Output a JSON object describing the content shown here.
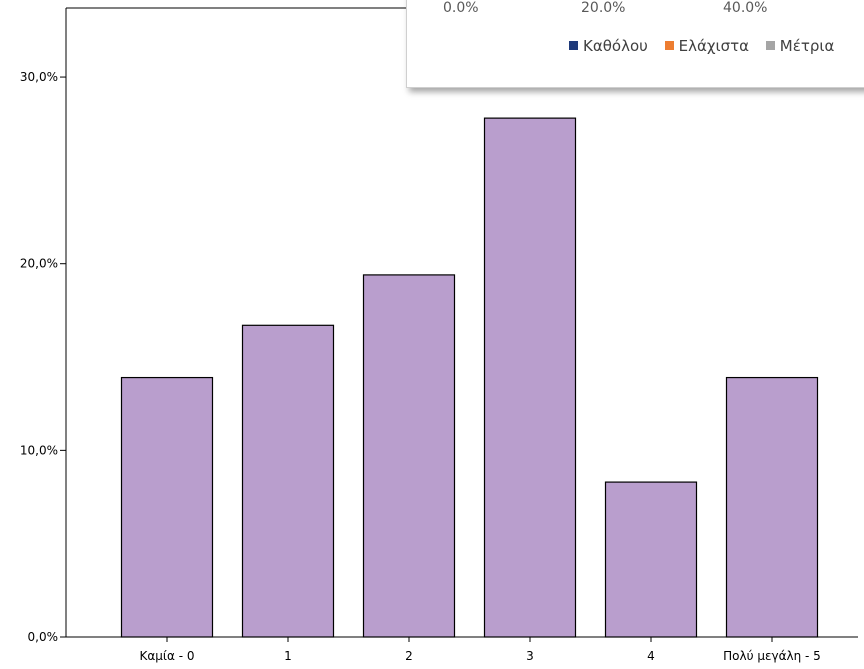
{
  "chart_data": {
    "type": "bar",
    "categories": [
      "Καμία - 0",
      "1",
      "2",
      "3",
      "4",
      "Πολύ μεγάλη - 5"
    ],
    "values": [
      13.9,
      16.7,
      19.4,
      27.8,
      8.3,
      13.9
    ],
    "ylim": [
      0,
      33.7
    ],
    "yticks": [
      0,
      10,
      20,
      30
    ],
    "ytick_labels": [
      "0,0%",
      "10,0%",
      "20,0%",
      "30,0%"
    ],
    "bar_color": "#b99ecd",
    "grid": false,
    "title": "",
    "xlabel": "",
    "ylabel": ""
  },
  "overlay_panel": {
    "axis_ticks": [
      "0.0%",
      "20.0%",
      "40.0%"
    ],
    "legend": [
      {
        "label": "Καθόλου",
        "color": "#1f3a7a"
      },
      {
        "label": "Ελάχιστα",
        "color": "#ed7d31"
      },
      {
        "label": "Μέτρια",
        "color": "#a5a5a5"
      }
    ]
  }
}
